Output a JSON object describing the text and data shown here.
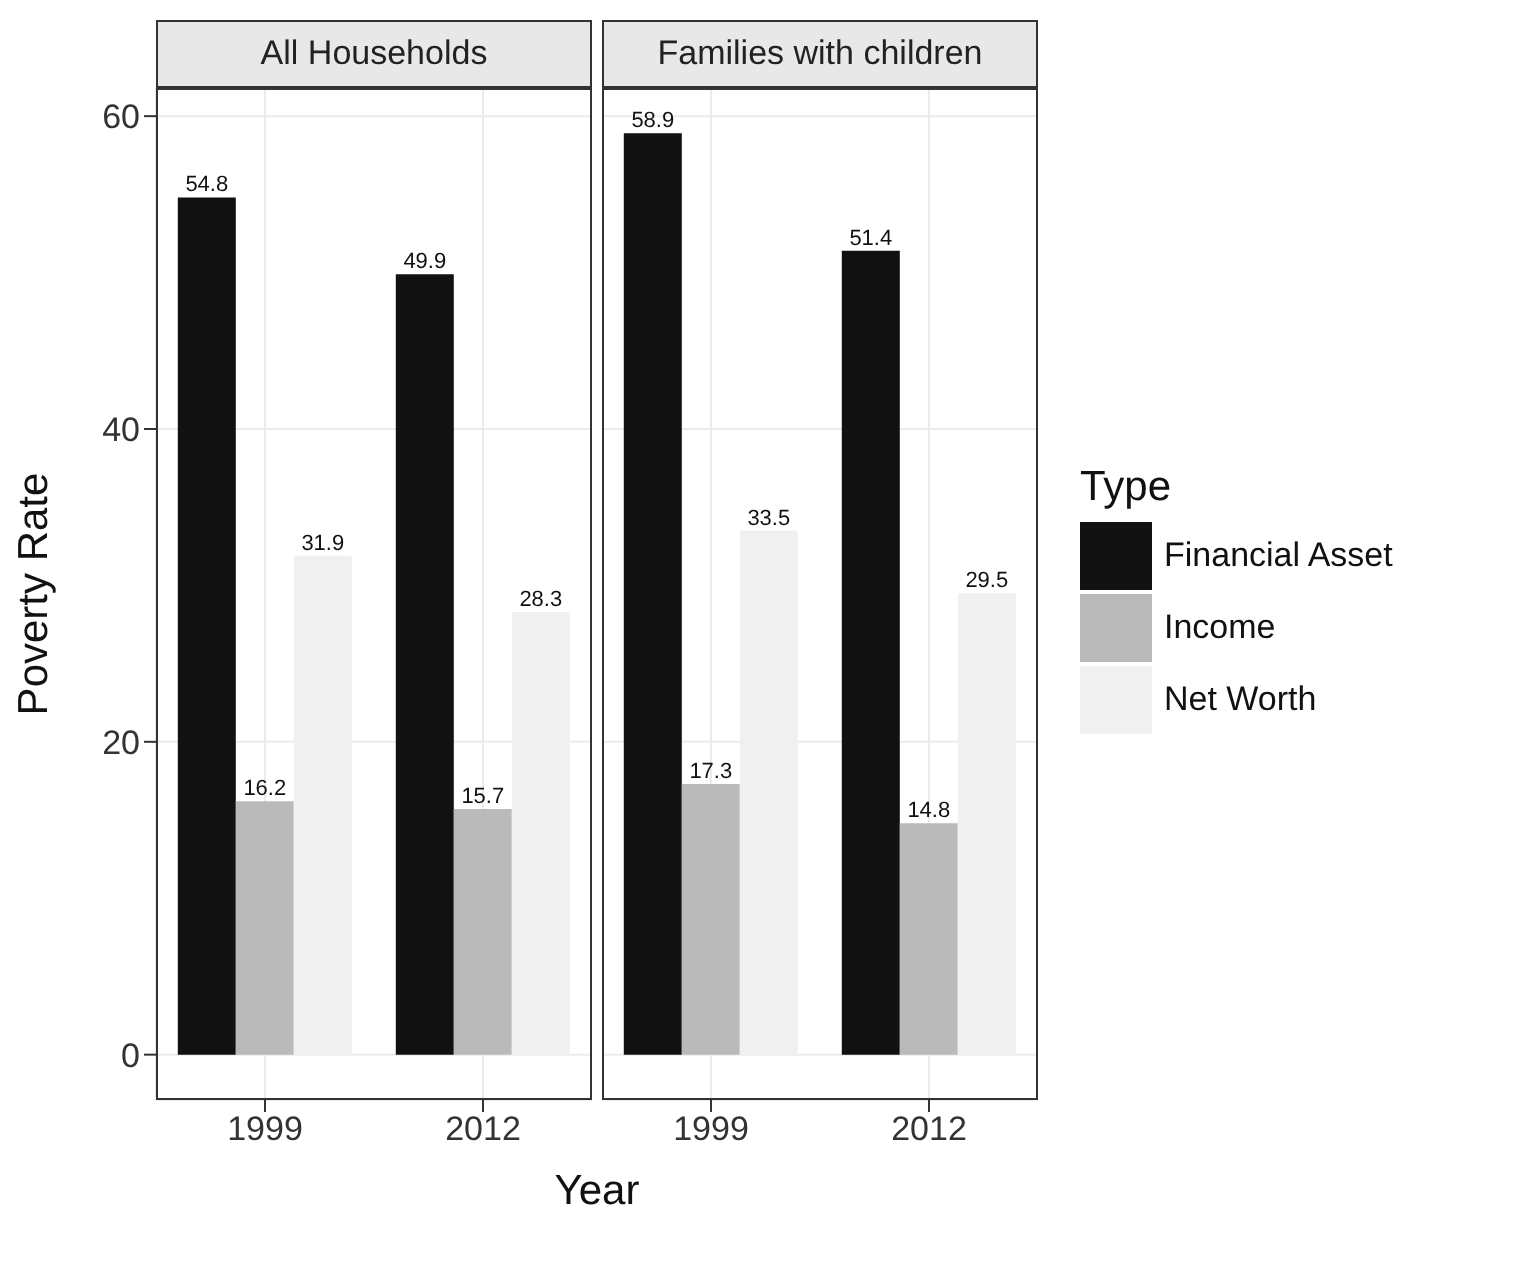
{
  "chart_data": [
    {
      "type": "bar",
      "title": "All Households",
      "xlabel": "Year",
      "ylabel": "Poverty Rate",
      "categories": [
        "1999",
        "2012"
      ],
      "series": [
        {
          "name": "Financial Asset",
          "color": "#111111",
          "values": [
            54.8,
            49.9
          ]
        },
        {
          "name": "Income",
          "color": "#bababa",
          "values": [
            16.2,
            15.7
          ]
        },
        {
          "name": "Net Worth",
          "color": "#f0f0f0",
          "values": [
            31.9,
            28.3
          ]
        }
      ],
      "ylim": [
        -2.9,
        61.8
      ],
      "yticks": [
        0,
        20,
        40,
        60
      ],
      "grid": true,
      "data_labels": true,
      "legend": "right",
      "legend_title": "Type"
    },
    {
      "type": "bar",
      "title": "Families with children",
      "categories": [
        "1999",
        "2012"
      ],
      "series": [
        {
          "color": "#111111",
          "values": [
            58.9,
            51.4
          ]
        },
        {
          "color": "#bababa",
          "values": [
            17.3,
            14.8
          ]
        },
        {
          "color": "#f0f0f0",
          "values": [
            33.5,
            29.5
          ]
        }
      ],
      "ylim": [
        -2.9,
        61.8
      ],
      "yticks": [
        0,
        20,
        40,
        60
      ],
      "grid": true,
      "data_labels": true,
      "tick_labels": "x"
    }
  ]
}
